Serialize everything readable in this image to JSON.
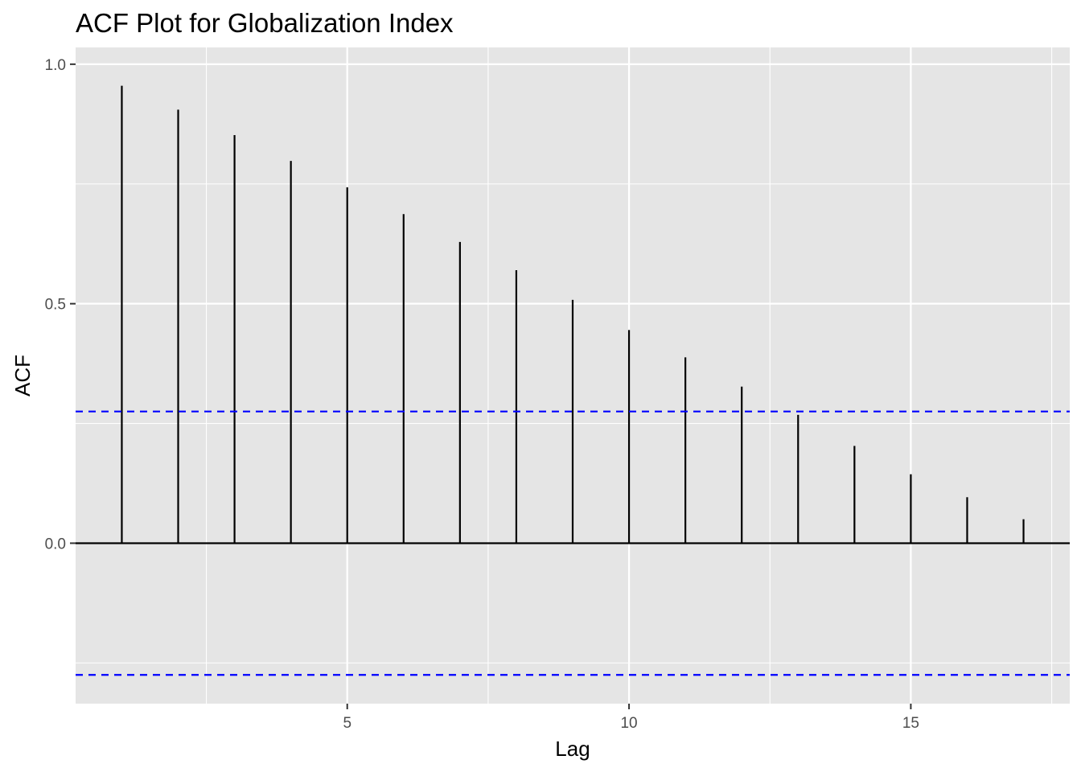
{
  "chart_data": {
    "type": "bar",
    "title": "ACF Plot for Globalization Index",
    "xlabel": "Lag",
    "ylabel": "ACF",
    "lags": [
      1,
      2,
      3,
      4,
      5,
      6,
      7,
      8,
      9,
      10,
      11,
      12,
      13,
      14,
      15,
      16,
      17
    ],
    "values": [
      0.955,
      0.905,
      0.852,
      0.798,
      0.743,
      0.687,
      0.629,
      0.57,
      0.508,
      0.445,
      0.388,
      0.327,
      0.268,
      0.203,
      0.144,
      0.096,
      0.05
    ],
    "xlim": [
      0.18,
      17.82
    ],
    "ylim": [
      -0.335,
      1.035
    ],
    "x_ticks": [
      5,
      10,
      15
    ],
    "x_tick_labels": [
      "5",
      "10",
      "15"
    ],
    "y_ticks": [
      0.0,
      0.5,
      1.0
    ],
    "y_tick_labels": [
      "0.0",
      "0.5",
      "1.0"
    ],
    "confidence_bounds": [
      0.275,
      -0.275
    ],
    "grid": true,
    "colors": {
      "panel_background": "#e5e5e5",
      "grid": "#ffffff",
      "bars": "#000000",
      "zero_line": "#000000",
      "confidence_lines": "#0000ff"
    }
  }
}
